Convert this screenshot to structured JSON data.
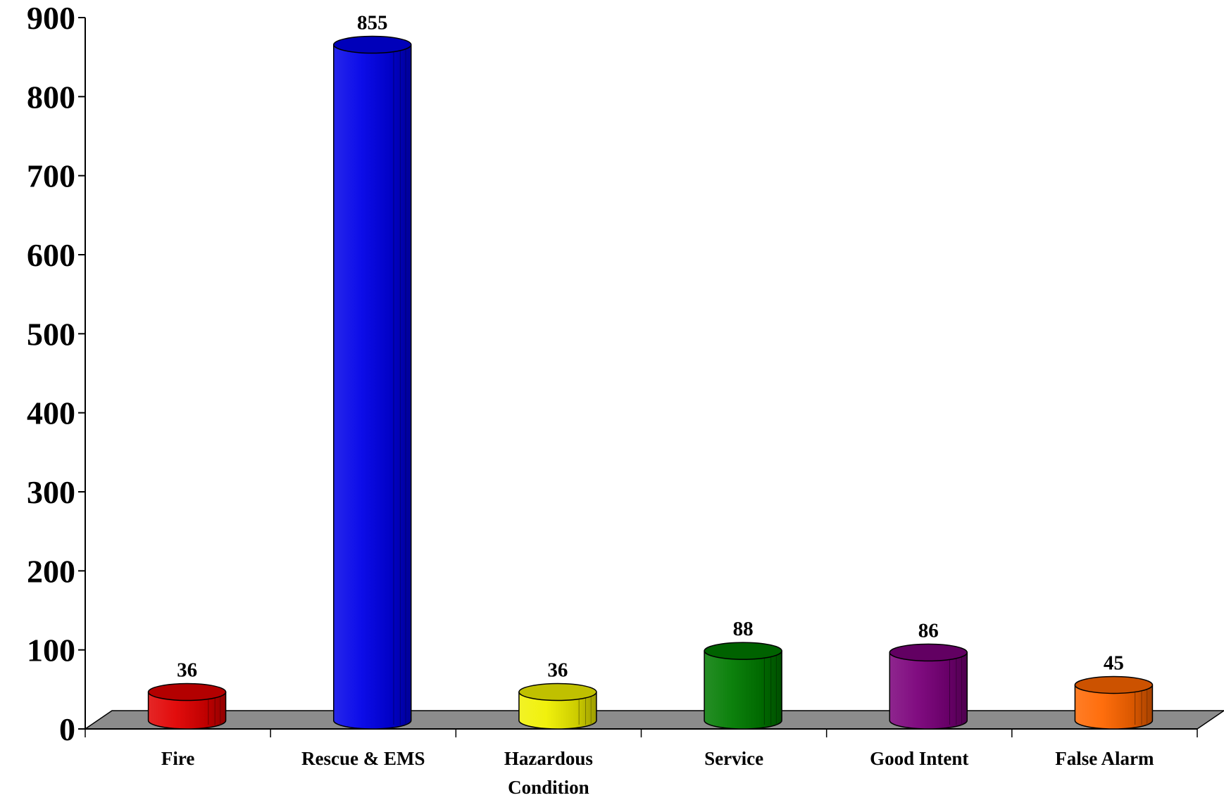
{
  "chart_data": {
    "type": "bar",
    "style": "3d-cylinder",
    "title": "",
    "xlabel": "",
    "ylabel": "",
    "ylim": [
      0,
      900
    ],
    "yticks": [
      0,
      100,
      200,
      300,
      400,
      500,
      600,
      700,
      800,
      900
    ],
    "grid": false,
    "legend": "none",
    "categories": [
      [
        "Fire"
      ],
      [
        "Rescue & EMS"
      ],
      [
        "Hazardous",
        "Condition"
      ],
      [
        "Service"
      ],
      [
        "Good Intent"
      ],
      [
        "False Alarm"
      ]
    ],
    "values": [
      36,
      855,
      36,
      88,
      86,
      45
    ],
    "colors": [
      "#e00000",
      "#0000e8",
      "#f0f000",
      "#007a00",
      "#7a007a",
      "#ff6600"
    ],
    "floor_color": "#8c8c8c"
  }
}
